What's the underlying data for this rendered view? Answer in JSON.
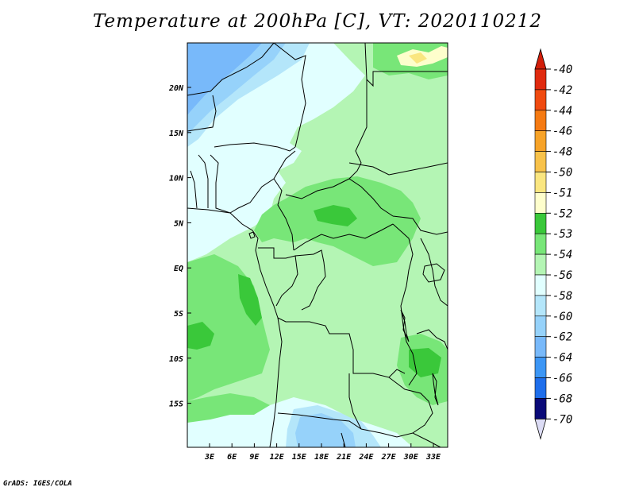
{
  "title": "Temperature at 200hPa [C], VT: 2020110212",
  "credit": "GrADS: IGES/COLA",
  "map": {
    "lon_ticks": [
      "3E",
      "6E",
      "9E",
      "12E",
      "15E",
      "18E",
      "21E",
      "24E",
      "27E",
      "30E",
      "33E"
    ],
    "lat_ticks": [
      "20N",
      "15N",
      "10N",
      "5N",
      "EQ",
      "5S",
      "10S",
      "15S"
    ]
  },
  "legend": {
    "levels": [
      {
        "label": "-40",
        "color": "#e02a0f"
      },
      {
        "label": "-42",
        "color": "#f04a10"
      },
      {
        "label": "-44",
        "color": "#f57a12"
      },
      {
        "label": "-46",
        "color": "#f7a328"
      },
      {
        "label": "-48",
        "color": "#f8c24a"
      },
      {
        "label": "-50",
        "color": "#fae680"
      },
      {
        "label": "-51",
        "color": "#fefecc"
      },
      {
        "label": "-52",
        "color": "#3ac83a"
      },
      {
        "label": "-53",
        "color": "#78e678"
      },
      {
        "label": "-54",
        "color": "#b4f5b4"
      },
      {
        "label": "-56",
        "color": "#e1ffff"
      },
      {
        "label": "-58",
        "color": "#b4e6fa"
      },
      {
        "label": "-60",
        "color": "#96d2fa"
      },
      {
        "label": "-62",
        "color": "#78b9fa"
      },
      {
        "label": "-64",
        "color": "#3c96f5"
      },
      {
        "label": "-66",
        "color": "#1e6eeb"
      },
      {
        "label": "-68",
        "color": "#1450d2"
      },
      {
        "label": "-70",
        "color": "#0a0a78"
      }
    ],
    "top_arrow_color": "#d21e0a",
    "bottom_arrow_color": "#dcdcf5"
  }
}
